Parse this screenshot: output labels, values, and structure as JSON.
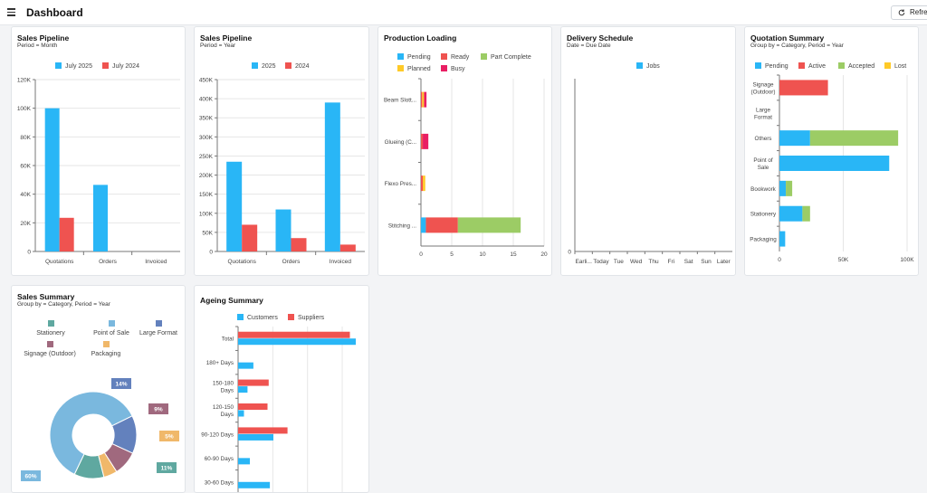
{
  "header": {
    "title": "Dashboard",
    "refresh_label": "Refresh"
  },
  "colors": {
    "blue": "#29b6f6",
    "red": "#ef5350",
    "green": "#9ccc65",
    "yellow": "#ffca28",
    "pink": "#e91e63",
    "grid": "#e6e6e6",
    "axis": "#777777"
  },
  "cards": {
    "pipeline_month": {
      "title": "Sales Pipeline",
      "subtitle": "Period = Month",
      "legend": [
        "July 2025",
        "July 2024"
      ],
      "chart_data": {
        "type": "bar",
        "categories": [
          "Quotations",
          "Orders",
          "Invoiced"
        ],
        "series": [
          {
            "name": "July 2025",
            "values": [
              100000,
              46500,
              0
            ]
          },
          {
            "name": "July 2024",
            "values": [
              23500,
              0,
              0
            ]
          }
        ],
        "ylim": [
          0,
          120000
        ],
        "y_ticks": [
          "0",
          "20K",
          "40K",
          "60K",
          "80K",
          "100K",
          "120K"
        ],
        "grid": true,
        "legend_position": "top"
      }
    },
    "pipeline_year": {
      "title": "Sales Pipeline",
      "subtitle": "Period = Year",
      "legend": [
        "2025",
        "2024"
      ],
      "chart_data": {
        "type": "bar",
        "categories": [
          "Quotations",
          "Orders",
          "Invoiced"
        ],
        "series": [
          {
            "name": "2025",
            "values": [
              235000,
              110000,
              390000
            ]
          },
          {
            "name": "2024",
            "values": [
              70000,
              35000,
              18000
            ]
          }
        ],
        "ylim": [
          0,
          450000
        ],
        "y_ticks": [
          "0",
          "50K",
          "100K",
          "150K",
          "200K",
          "250K",
          "300K",
          "350K",
          "400K",
          "450K"
        ],
        "grid": true,
        "legend_position": "top"
      }
    },
    "production": {
      "title": "Production Loading",
      "legend": [
        "Pending",
        "Ready",
        "Part Complete",
        "Planned",
        "Busy"
      ],
      "chart_data": {
        "type": "bar",
        "orientation": "horizontal",
        "stacked": true,
        "categories": [
          "Beam Slott...",
          "Glueing (C...",
          "Flexo Pres...",
          "Stitching ..."
        ],
        "series": [
          {
            "name": "Pending",
            "values": [
              0,
              0,
              0,
              0.8
            ]
          },
          {
            "name": "Ready",
            "values": [
              0.2,
              0.3,
              0.3,
              5.2
            ]
          },
          {
            "name": "Part Complete",
            "values": [
              0,
              0,
              0,
              10.2
            ]
          },
          {
            "name": "Planned",
            "values": [
              0.3,
              0,
              0.4,
              0
            ]
          },
          {
            "name": "Busy",
            "values": [
              0.4,
              0.9,
              0,
              0
            ]
          }
        ],
        "xlim": [
          0,
          20
        ],
        "x_ticks": [
          "0",
          "5",
          "10",
          "15",
          "20"
        ],
        "grid": true,
        "legend_position": "top"
      }
    },
    "delivery": {
      "title": "Delivery Schedule",
      "subtitle": "Date = Due Date",
      "legend": [
        "Jobs"
      ],
      "chart_data": {
        "type": "bar",
        "categories": [
          "Earli...",
          "Today",
          "Tue",
          "Wed",
          "Thu",
          "Fri",
          "Sat",
          "Sun",
          "Later"
        ],
        "series": [
          {
            "name": "Jobs",
            "values": [
              0,
              0,
              0,
              0,
              0,
              0,
              0,
              0,
              0
            ]
          }
        ],
        "y_ticks": [
          "0"
        ],
        "legend_position": "top"
      }
    },
    "quotation": {
      "title": "Quotation Summary",
      "subtitle": "Group by = Category, Period = Year",
      "legend": [
        "Pending",
        "Active",
        "Accepted",
        "Lost"
      ],
      "chart_data": {
        "type": "bar",
        "orientation": "horizontal",
        "stacked": true,
        "categories": [
          [
            "Signage",
            "(Outdoor)"
          ],
          [
            "Large",
            "Format"
          ],
          [
            "Others"
          ],
          [
            "Point of",
            "Sale"
          ],
          [
            "Bookwork"
          ],
          [
            "Stationery"
          ],
          [
            "Packaging"
          ]
        ],
        "series": [
          {
            "name": "Pending",
            "values": [
              0,
              0,
              24000,
              86000,
              5000,
              18000,
              4500
            ]
          },
          {
            "name": "Active",
            "values": [
              38000,
              0,
              0,
              0,
              0,
              0,
              0
            ]
          },
          {
            "name": "Accepted",
            "values": [
              0,
              0,
              69000,
              0,
              5000,
              6000,
              0
            ]
          },
          {
            "name": "Lost",
            "values": [
              0,
              0,
              0,
              0,
              0,
              0,
              0
            ]
          }
        ],
        "xlim": [
          0,
          100000
        ],
        "x_ticks": [
          "0",
          "50K",
          "100K"
        ],
        "grid": true,
        "legend_position": "top"
      }
    },
    "sales_summary": {
      "title": "Sales Summary",
      "subtitle": "Group by = Category, Period = Year",
      "legend": [
        "Stationery",
        "Point of Sale",
        "Large Format",
        "Signage (Outdoor)",
        "Packaging"
      ],
      "chart_data": {
        "type": "pie",
        "donut": true,
        "slices": [
          {
            "name": "Stationery",
            "value": 11,
            "label": "11%"
          },
          {
            "name": "Point of Sale",
            "value": 60,
            "label": "60%"
          },
          {
            "name": "Large Format",
            "value": 14,
            "label": "14%"
          },
          {
            "name": "Signage (Outdoor)",
            "value": 9,
            "label": "9%"
          },
          {
            "name": "Packaging",
            "value": 5,
            "label": "5%"
          }
        ]
      },
      "slice_colors": [
        "#5fa8a0",
        "#7ab8de",
        "#6381bd",
        "#a0697e",
        "#f0b86a"
      ]
    },
    "ageing": {
      "title": "Ageing Summary",
      "legend": [
        "Customers",
        "Suppliers"
      ],
      "chart_data": {
        "type": "bar",
        "orientation": "horizontal",
        "categories": [
          [
            "Total"
          ],
          [
            "180+ Days"
          ],
          [
            "150-180",
            "Days"
          ],
          [
            "120-150",
            "Days"
          ],
          [
            "90-120 Days"
          ],
          [
            "60-90 Days"
          ],
          [
            "30-60 Days"
          ]
        ],
        "series": [
          {
            "name": "Customers",
            "values": [
              100,
              13,
              8,
              5,
              30,
              10,
              27
            ]
          },
          {
            "name": "Suppliers",
            "values": [
              95,
              0,
              26,
              25,
              42,
              0,
              0
            ]
          }
        ],
        "xlim": [
          0,
          110
        ],
        "grid": true,
        "legend_position": "top"
      }
    }
  }
}
